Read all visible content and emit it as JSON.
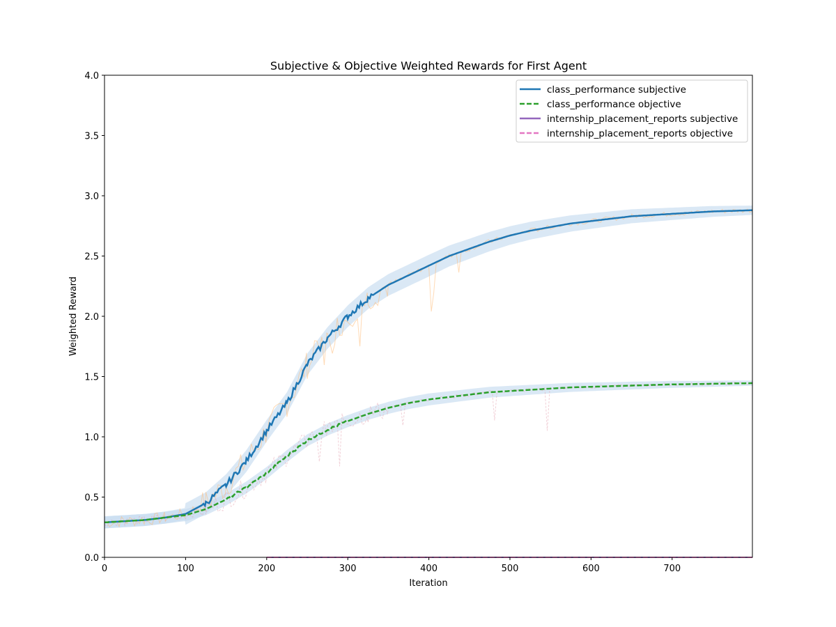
{
  "chart_data": {
    "type": "line",
    "title": "Subjective & Objective Weighted Rewards for First Agent",
    "xlabel": "Iteration",
    "ylabel": "Weighted Reward",
    "xlim": [
      0,
      799
    ],
    "ylim": [
      0.0,
      4.0
    ],
    "x_ticks": [
      0,
      100,
      200,
      300,
      400,
      500,
      600,
      700
    ],
    "x_tick_labels": [
      "0",
      "100",
      "200",
      "300",
      "400",
      "500",
      "600",
      "700"
    ],
    "y_ticks": [
      0.0,
      0.5,
      1.0,
      1.5,
      2.0,
      2.5,
      3.0,
      3.5,
      4.0
    ],
    "y_tick_labels": [
      "0.0",
      "0.5",
      "1.0",
      "1.5",
      "2.0",
      "2.5",
      "3.0",
      "3.5",
      "4.0"
    ],
    "grid": false,
    "legend_position": "top-right",
    "x": [
      0,
      25,
      50,
      75,
      100,
      125,
      150,
      175,
      200,
      225,
      250,
      275,
      300,
      325,
      350,
      375,
      400,
      425,
      450,
      475,
      500,
      525,
      550,
      575,
      600,
      625,
      650,
      675,
      700,
      725,
      750,
      775,
      799
    ],
    "series": [
      {
        "name": "class_performance subjective",
        "style": "solid",
        "color": "#1f77b4",
        "values": [
          0.29,
          0.3,
          0.31,
          0.33,
          0.36,
          0.45,
          0.6,
          0.8,
          1.05,
          1.28,
          1.6,
          1.82,
          2.0,
          2.15,
          2.26,
          2.34,
          2.42,
          2.5,
          2.56,
          2.62,
          2.67,
          2.71,
          2.74,
          2.77,
          2.79,
          2.81,
          2.83,
          2.84,
          2.85,
          2.86,
          2.87,
          2.875,
          2.88
        ]
      },
      {
        "name": "class_performance objective",
        "style": "dashed",
        "color": "#2ca02c",
        "values": [
          0.29,
          0.3,
          0.31,
          0.33,
          0.35,
          0.4,
          0.48,
          0.58,
          0.7,
          0.84,
          0.97,
          1.06,
          1.13,
          1.19,
          1.24,
          1.28,
          1.31,
          1.33,
          1.35,
          1.37,
          1.38,
          1.39,
          1.4,
          1.41,
          1.415,
          1.42,
          1.425,
          1.43,
          1.435,
          1.437,
          1.44,
          1.443,
          1.445
        ]
      },
      {
        "name": "internship_placement_reports subjective",
        "style": "solid",
        "color": "#9467bd",
        "values": [
          0.0,
          0.0,
          0.0,
          0.0,
          0.0,
          0.0,
          0.0,
          0.0,
          0.0,
          0.0,
          0.0,
          0.0,
          0.0,
          0.0,
          0.0,
          0.0,
          0.0,
          0.0,
          0.0,
          0.0,
          0.0,
          0.0,
          0.0,
          0.0,
          0.0,
          0.0,
          0.0,
          0.0,
          0.0,
          0.0,
          0.0,
          0.0,
          0.0
        ]
      },
      {
        "name": "internship_placement_reports objective",
        "style": "dashed",
        "color": "#e377c2",
        "values": [
          0.0,
          0.0,
          0.0,
          0.0,
          0.0,
          0.0,
          0.0,
          0.0,
          0.0,
          0.0,
          0.0,
          0.0,
          0.0,
          0.0,
          0.0,
          0.0,
          0.0,
          0.0,
          0.0,
          0.0,
          0.0,
          0.0,
          0.0,
          0.0,
          0.0,
          0.0,
          0.0,
          0.0,
          0.0,
          0.0,
          0.0,
          0.0,
          0.0
        ]
      }
    ],
    "band_color": "#c6dbef",
    "noise_color": "#ffbb78"
  }
}
